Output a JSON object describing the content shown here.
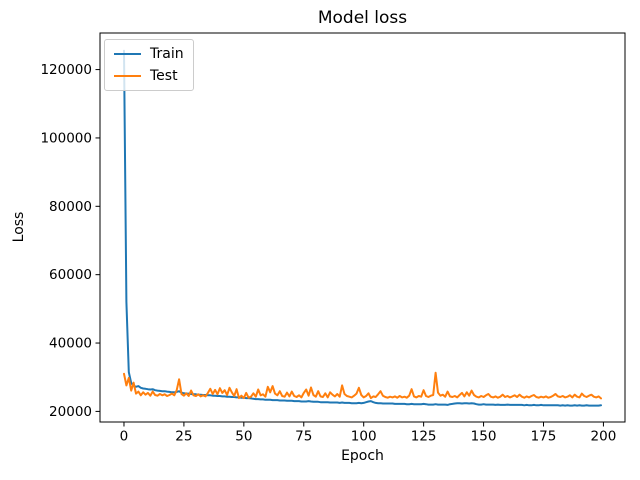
{
  "figure_background": "#ffffff",
  "chart_data": {
    "type": "line",
    "title": "Model loss",
    "xlabel": "Epoch",
    "ylabel": "Loss",
    "xlim": [
      -10,
      209
    ],
    "ylim": [
      16900,
      130700
    ],
    "xticks": [
      0,
      25,
      50,
      75,
      100,
      125,
      150,
      175,
      200
    ],
    "yticks": [
      20000,
      40000,
      60000,
      80000,
      100000,
      120000
    ],
    "grid": false,
    "legend": {
      "position": "upper left",
      "entries": [
        "Train",
        "Test"
      ]
    },
    "x_start": 0,
    "series": [
      {
        "name": "Train",
        "color": "#1f77b4",
        "values": [
          125500,
          52000,
          31500,
          28300,
          27500,
          27200,
          27400,
          26900,
          26700,
          26600,
          26500,
          26400,
          26500,
          26200,
          26100,
          26000,
          25900,
          25900,
          25800,
          25700,
          25600,
          25600,
          25700,
          25900,
          25500,
          25300,
          25200,
          25200,
          25100,
          25000,
          25000,
          24900,
          24900,
          24800,
          24800,
          24700,
          24700,
          24600,
          24600,
          24500,
          24500,
          24400,
          24400,
          24300,
          24300,
          24200,
          24200,
          24100,
          24100,
          24000,
          24000,
          23900,
          23900,
          23800,
          23700,
          23600,
          23600,
          23500,
          23500,
          23400,
          23400,
          23400,
          23300,
          23300,
          23300,
          23200,
          23200,
          23200,
          23100,
          23100,
          23100,
          23000,
          23000,
          23000,
          22900,
          22900,
          22900,
          23000,
          22900,
          22800,
          22800,
          22800,
          22700,
          22700,
          22700,
          22700,
          22600,
          22600,
          22600,
          22600,
          22500,
          22600,
          22500,
          22500,
          22500,
          22400,
          22400,
          22400,
          22500,
          22400,
          22500,
          22700,
          22900,
          23000,
          22700,
          22500,
          22400,
          22400,
          22300,
          22300,
          22300,
          22300,
          22300,
          22200,
          22200,
          22200,
          22200,
          22200,
          22100,
          22100,
          22200,
          22100,
          22100,
          22100,
          22100,
          22200,
          22100,
          22000,
          22000,
          22000,
          22100,
          22000,
          22000,
          22000,
          22000,
          21900,
          22100,
          22200,
          22300,
          22400,
          22400,
          22300,
          22400,
          22400,
          22300,
          22400,
          22300,
          22100,
          22000,
          22000,
          22100,
          22000,
          22000,
          22000,
          22000,
          21900,
          22000,
          21900,
          21900,
          21900,
          22000,
          21900,
          21900,
          21900,
          21900,
          21900,
          21900,
          21800,
          21900,
          21800,
          21800,
          21900,
          21800,
          21800,
          21900,
          21800,
          21800,
          21800,
          21800,
          21800,
          21800,
          21800,
          21700,
          21800,
          21700,
          21800,
          21700,
          21700,
          21800,
          21700,
          21800,
          21700,
          21700,
          21800,
          21700,
          21700,
          21700,
          21700,
          21700,
          21800
        ]
      },
      {
        "name": "Test",
        "color": "#ff7f0e",
        "values": [
          31000,
          27600,
          29800,
          26100,
          28400,
          25200,
          25800,
          24700,
          25600,
          24900,
          25400,
          24600,
          25800,
          24800,
          24600,
          25100,
          24700,
          25000,
          24500,
          24800,
          25200,
          24700,
          26200,
          29400,
          25100,
          24600,
          25300,
          24500,
          26100,
          24700,
          24500,
          25000,
          24400,
          24700,
          24400,
          25400,
          26600,
          25100,
          26300,
          25000,
          26800,
          25400,
          26200,
          24800,
          26900,
          25600,
          24500,
          26500,
          23900,
          24600,
          23900,
          25400,
          24000,
          24300,
          25300,
          24300,
          26400,
          24700,
          25000,
          24300,
          27200,
          25600,
          27400,
          25200,
          24700,
          25900,
          24500,
          24300,
          25500,
          24400,
          25800,
          24500,
          24200,
          24700,
          24100,
          25400,
          26400,
          24600,
          27000,
          24800,
          24300,
          25900,
          24400,
          24200,
          25300,
          24100,
          25600,
          24900,
          24400,
          25100,
          24300,
          27600,
          25100,
          24500,
          24300,
          24100,
          24600,
          25200,
          26900,
          24800,
          24100,
          24500,
          25300,
          23900,
          24400,
          24200,
          25000,
          25900,
          24600,
          24200,
          24000,
          24300,
          24100,
          24400,
          24000,
          24500,
          24100,
          24300,
          24000,
          24600,
          26500,
          24400,
          24100,
          24500,
          24300,
          26200,
          24500,
          24200,
          24600,
          24800,
          31300,
          25500,
          24600,
          24900,
          24300,
          25800,
          24400,
          24200,
          24500,
          24100,
          24800,
          25400,
          24400,
          25600,
          24600,
          26100,
          24800,
          24300,
          24100,
          24500,
          24200,
          24700,
          25100,
          24300,
          24100,
          24400,
          24000,
          24300,
          24900,
          24200,
          24500,
          24100,
          24400,
          24700,
          24200,
          24900,
          24300,
          24000,
          24400,
          24100,
          24500,
          24800,
          24200,
          24000,
          24300,
          24100,
          24400,
          24000,
          24200,
          24600,
          25100,
          24400,
          24200,
          24500,
          24100,
          24300,
          24700,
          24100,
          24900,
          24300,
          24100,
          25200,
          24500,
          24200,
          24600,
          24900,
          24300,
          24100,
          24400,
          23800
        ]
      }
    ]
  }
}
